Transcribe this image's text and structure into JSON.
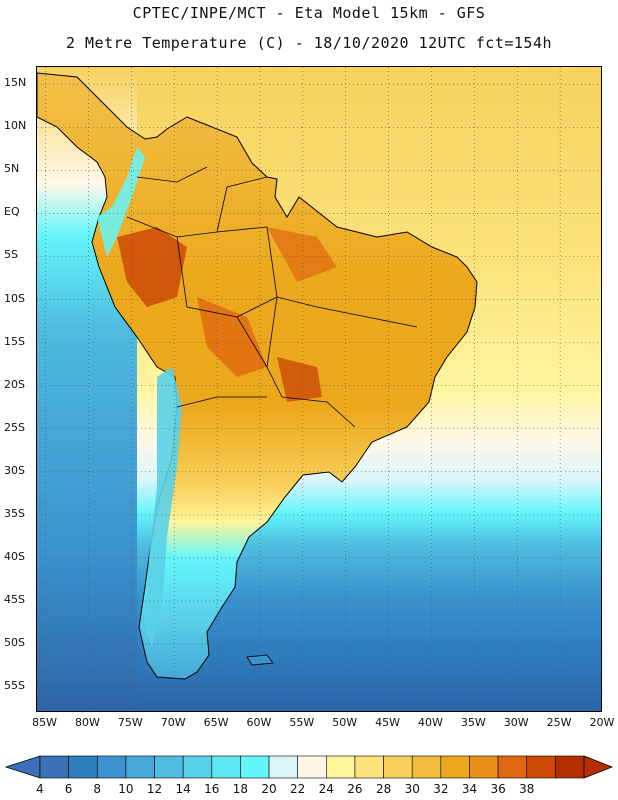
{
  "header": {
    "line1": "CPTEC/INPE/MCT -  Eta Model 15km - GFS",
    "line2": "2 Metre Temperature (C) - 18/10/2020 12UTC fct=154h"
  },
  "map": {
    "lat_labels": [
      "15N",
      "10N",
      "5N",
      "EQ",
      "5S",
      "10S",
      "15S",
      "20S",
      "25S",
      "30S",
      "35S",
      "40S",
      "45S",
      "50S",
      "55S"
    ],
    "lon_labels": [
      "85W",
      "80W",
      "75W",
      "70W",
      "65W",
      "60W",
      "55W",
      "50W",
      "45W",
      "40W",
      "35W",
      "30W",
      "25W",
      "20W"
    ],
    "lat_values": [
      15,
      10,
      5,
      0,
      -5,
      -10,
      -15,
      -20,
      -25,
      -30,
      -35,
      -40,
      -45,
      -50,
      -55
    ],
    "lon_values": [
      -85,
      -80,
      -75,
      -70,
      -65,
      -60,
      -55,
      -50,
      -45,
      -40,
      -35,
      -30,
      -25,
      -20
    ],
    "lat_range": [
      -58,
      17
    ],
    "lon_range": [
      -86,
      -20
    ]
  },
  "colorbar": {
    "labels": [
      "4",
      "6",
      "8",
      "10",
      "12",
      "14",
      "16",
      "18",
      "20",
      "22",
      "24",
      "26",
      "28",
      "30",
      "32",
      "34",
      "36",
      "38"
    ],
    "colors": [
      "#3b6fb6",
      "#2f7ec0",
      "#3a93cd",
      "#46a8d8",
      "#4fbde0",
      "#5ad0e8",
      "#5fe6f0",
      "#64f6fb",
      "#d9f6fb",
      "#fff8e8",
      "#fff59a",
      "#ffe27a",
      "#f8cf5a",
      "#f0bb3c",
      "#eca81c",
      "#e8901a",
      "#e06810",
      "#cc4a06",
      "#b52e02"
    ],
    "low_color": "#3b6fb6",
    "high_color": "#b52e02"
  },
  "colors": {
    "land_hot": "#e8901a",
    "land_warm": "#f0bb3c",
    "land_mild": "#f8cf5a",
    "ocean_tropical": "#f8d868",
    "ocean_warm": "#fff59a",
    "ocean_cool": "#64f6fb",
    "ocean_cold": "#3a93cd",
    "ocean_frigid": "#2f6fb0",
    "andes": "#5fe6f0",
    "border": "#000000",
    "grid": "#555555"
  }
}
